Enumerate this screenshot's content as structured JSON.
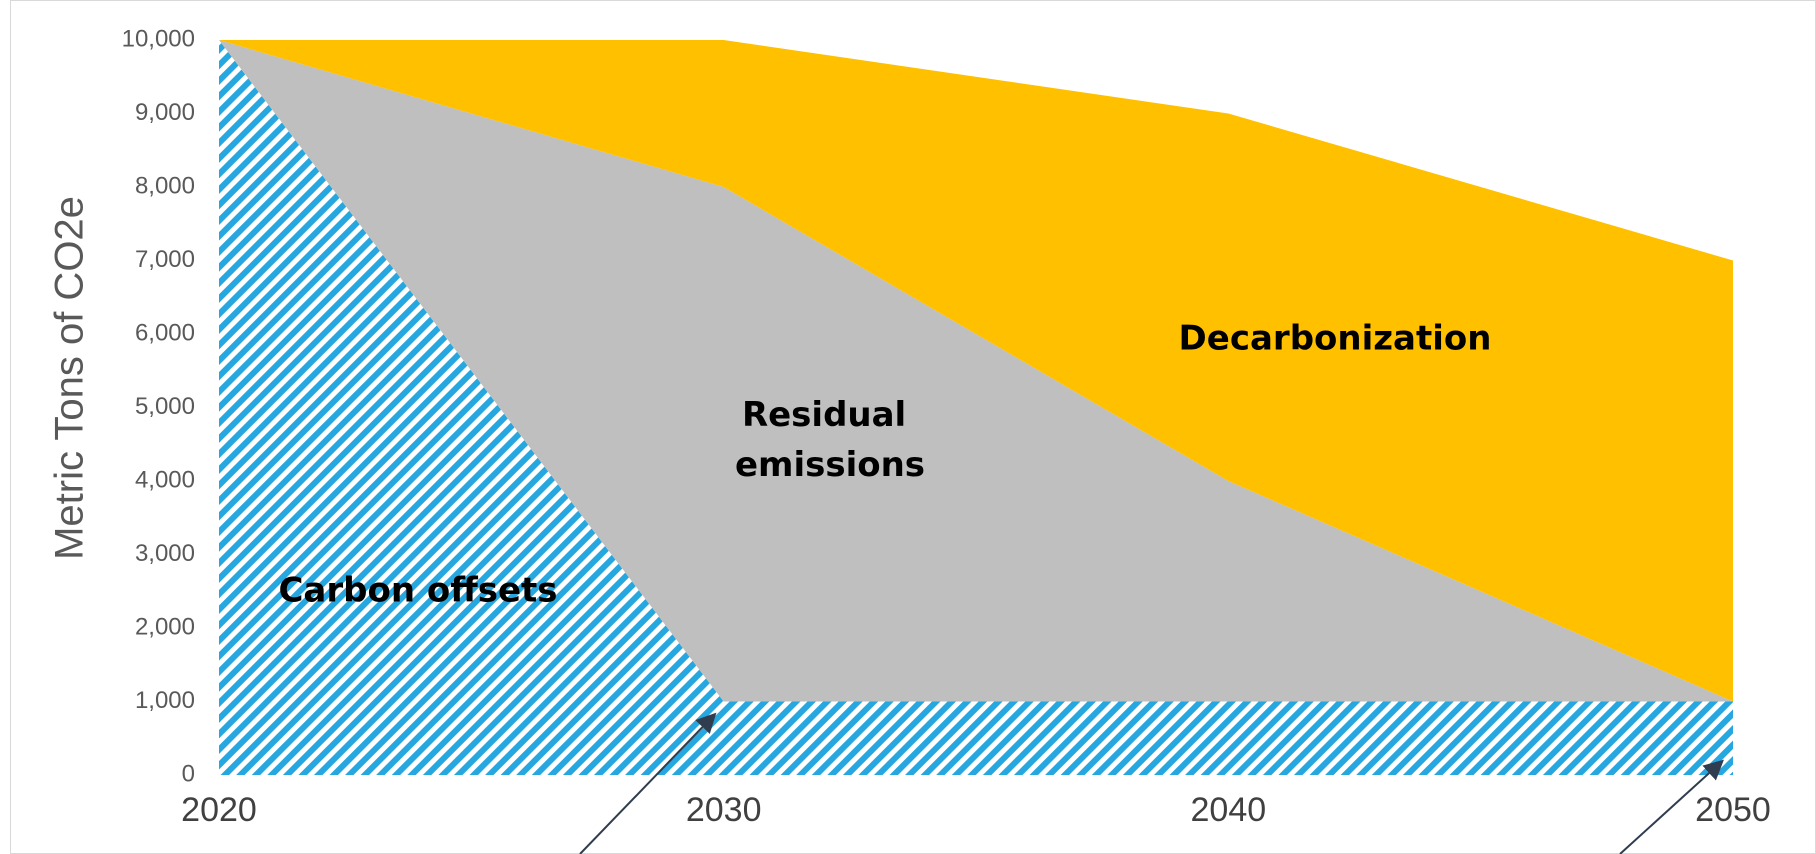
{
  "chart_data": {
    "type": "area",
    "title": "",
    "xlabel": "",
    "ylabel": "Metric Tons of CO2e",
    "x": [
      2020,
      2030,
      2040,
      2050
    ],
    "x_ticks": [
      "2020",
      "2030",
      "2040",
      "2050"
    ],
    "ylim": [
      0,
      10000
    ],
    "y_ticks": [
      "0",
      "1,000",
      "2,000",
      "3,000",
      "4,000",
      "5,000",
      "6,000",
      "7,000",
      "8,000",
      "9,000",
      "10,000"
    ],
    "grid": false,
    "series": [
      {
        "name": "Carbon offsets",
        "values": [
          10000,
          1000,
          1000,
          1000
        ],
        "color": "#27a7df",
        "pattern": "diagonal-hatch"
      },
      {
        "name": "Residual emissions",
        "values": [
          0,
          7000,
          3000,
          0
        ],
        "color": "#bfbfbf"
      },
      {
        "name": "Decarbonization",
        "values": [
          0,
          2000,
          5000,
          6000
        ],
        "color": "#ffc000"
      }
    ],
    "annotations": [
      {
        "type": "arrow",
        "points_to": {
          "x": 2030,
          "y": 1000
        }
      },
      {
        "type": "arrow",
        "points_to": {
          "x": 2050,
          "y": 200
        }
      }
    ]
  }
}
